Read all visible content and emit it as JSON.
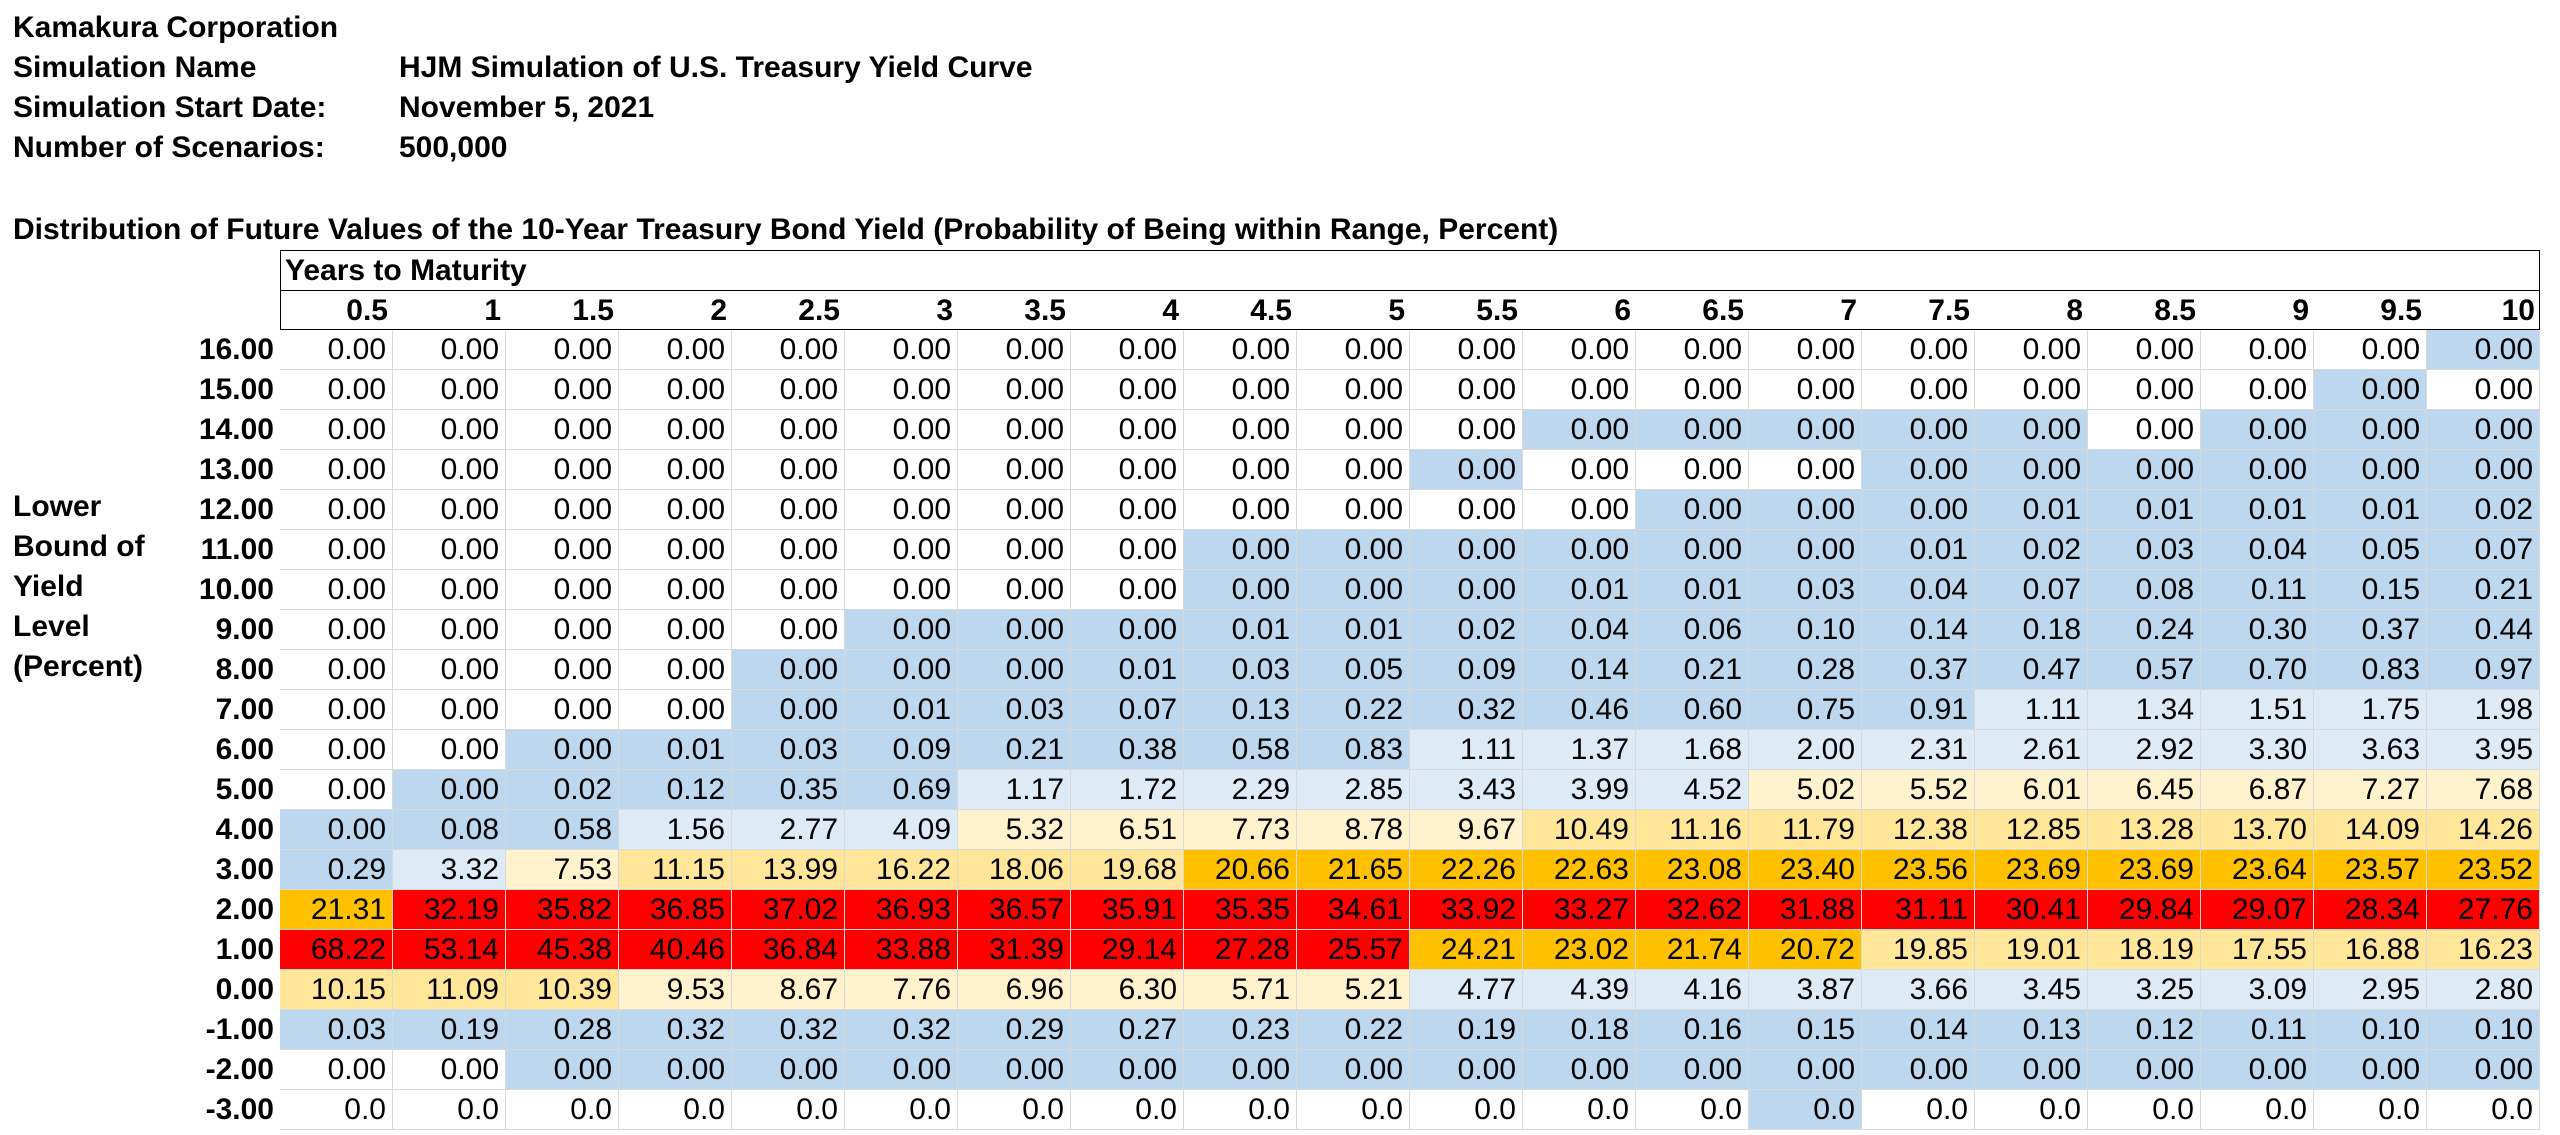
{
  "header": {
    "company": "Kamakura Corporation",
    "simulation_name_label": "Simulation Name",
    "simulation_name": "HJM Simulation of U.S. Treasury Yield Curve",
    "start_date_label": "Simulation Start Date:",
    "start_date": "November 5, 2021",
    "scenarios_label": "Number of Scenarios:",
    "scenarios": "500,000"
  },
  "table_title": "Distribution of Future Values of the 10-Year Treasury Bond Yield (Probability of Being within Range, Percent)",
  "years_to_maturity_label": "Years to Maturity",
  "row_axis_label": [
    "Lower",
    "Bound of",
    "Yield",
    "Level",
    "(Percent)"
  ],
  "colors": {
    "white": "#ffffff",
    "blue": "#bdd7ee",
    "lightblue": "#ddebf7",
    "cream": "#fff2cc",
    "yellow": "#ffe699",
    "orange": "#ffc000",
    "red": "#ff0000"
  },
  "chart_data": {
    "type": "table",
    "columns": [
      "0.5",
      "1",
      "1.5",
      "2",
      "2.5",
      "3",
      "3.5",
      "4",
      "4.5",
      "5",
      "5.5",
      "6",
      "6.5",
      "7",
      "7.5",
      "8",
      "8.5",
      "9",
      "9.5",
      "10"
    ],
    "rows": [
      {
        "label": "16.00",
        "values": [
          "0.00",
          "0.00",
          "0.00",
          "0.00",
          "0.00",
          "0.00",
          "0.00",
          "0.00",
          "0.00",
          "0.00",
          "0.00",
          "0.00",
          "0.00",
          "0.00",
          "0.00",
          "0.00",
          "0.00",
          "0.00",
          "0.00",
          "0.00"
        ],
        "shade": [
          "w",
          "w",
          "w",
          "w",
          "w",
          "w",
          "w",
          "w",
          "w",
          "w",
          "w",
          "w",
          "w",
          "w",
          "w",
          "w",
          "w",
          "w",
          "w",
          "b"
        ]
      },
      {
        "label": "15.00",
        "values": [
          "0.00",
          "0.00",
          "0.00",
          "0.00",
          "0.00",
          "0.00",
          "0.00",
          "0.00",
          "0.00",
          "0.00",
          "0.00",
          "0.00",
          "0.00",
          "0.00",
          "0.00",
          "0.00",
          "0.00",
          "0.00",
          "0.00",
          "0.00"
        ],
        "shade": [
          "w",
          "w",
          "w",
          "w",
          "w",
          "w",
          "w",
          "w",
          "w",
          "w",
          "w",
          "w",
          "w",
          "w",
          "w",
          "w",
          "w",
          "w",
          "b",
          "w"
        ]
      },
      {
        "label": "14.00",
        "values": [
          "0.00",
          "0.00",
          "0.00",
          "0.00",
          "0.00",
          "0.00",
          "0.00",
          "0.00",
          "0.00",
          "0.00",
          "0.00",
          "0.00",
          "0.00",
          "0.00",
          "0.00",
          "0.00",
          "0.00",
          "0.00",
          "0.00",
          "0.00"
        ],
        "shade": [
          "w",
          "w",
          "w",
          "w",
          "w",
          "w",
          "w",
          "w",
          "w",
          "w",
          "w",
          "b",
          "b",
          "b",
          "b",
          "b",
          "w",
          "b",
          "b",
          "b"
        ]
      },
      {
        "label": "13.00",
        "values": [
          "0.00",
          "0.00",
          "0.00",
          "0.00",
          "0.00",
          "0.00",
          "0.00",
          "0.00",
          "0.00",
          "0.00",
          "0.00",
          "0.00",
          "0.00",
          "0.00",
          "0.00",
          "0.00",
          "0.00",
          "0.00",
          "0.00",
          "0.00"
        ],
        "shade": [
          "w",
          "w",
          "w",
          "w",
          "w",
          "w",
          "w",
          "w",
          "w",
          "w",
          "b",
          "w",
          "w",
          "w",
          "b",
          "b",
          "b",
          "b",
          "b",
          "b"
        ]
      },
      {
        "label": "12.00",
        "values": [
          "0.00",
          "0.00",
          "0.00",
          "0.00",
          "0.00",
          "0.00",
          "0.00",
          "0.00",
          "0.00",
          "0.00",
          "0.00",
          "0.00",
          "0.00",
          "0.00",
          "0.00",
          "0.01",
          "0.01",
          "0.01",
          "0.01",
          "0.02"
        ],
        "shade": [
          "w",
          "w",
          "w",
          "w",
          "w",
          "w",
          "w",
          "w",
          "w",
          "w",
          "w",
          "w",
          "b",
          "b",
          "b",
          "b",
          "b",
          "b",
          "b",
          "b"
        ]
      },
      {
        "label": "11.00",
        "values": [
          "0.00",
          "0.00",
          "0.00",
          "0.00",
          "0.00",
          "0.00",
          "0.00",
          "0.00",
          "0.00",
          "0.00",
          "0.00",
          "0.00",
          "0.00",
          "0.00",
          "0.01",
          "0.02",
          "0.03",
          "0.04",
          "0.05",
          "0.07"
        ],
        "shade": [
          "w",
          "w",
          "w",
          "w",
          "w",
          "w",
          "w",
          "w",
          "b",
          "b",
          "b",
          "b",
          "b",
          "b",
          "b",
          "b",
          "b",
          "b",
          "b",
          "b"
        ]
      },
      {
        "label": "10.00",
        "values": [
          "0.00",
          "0.00",
          "0.00",
          "0.00",
          "0.00",
          "0.00",
          "0.00",
          "0.00",
          "0.00",
          "0.00",
          "0.00",
          "0.01",
          "0.01",
          "0.03",
          "0.04",
          "0.07",
          "0.08",
          "0.11",
          "0.15",
          "0.21"
        ],
        "shade": [
          "w",
          "w",
          "w",
          "w",
          "w",
          "w",
          "w",
          "w",
          "b",
          "b",
          "b",
          "b",
          "b",
          "b",
          "b",
          "b",
          "b",
          "b",
          "b",
          "b"
        ]
      },
      {
        "label": "9.00",
        "values": [
          "0.00",
          "0.00",
          "0.00",
          "0.00",
          "0.00",
          "0.00",
          "0.00",
          "0.00",
          "0.01",
          "0.01",
          "0.02",
          "0.04",
          "0.06",
          "0.10",
          "0.14",
          "0.18",
          "0.24",
          "0.30",
          "0.37",
          "0.44"
        ],
        "shade": [
          "w",
          "w",
          "w",
          "w",
          "w",
          "b",
          "b",
          "b",
          "b",
          "b",
          "b",
          "b",
          "b",
          "b",
          "b",
          "b",
          "b",
          "b",
          "b",
          "b"
        ]
      },
      {
        "label": "8.00",
        "values": [
          "0.00",
          "0.00",
          "0.00",
          "0.00",
          "0.00",
          "0.00",
          "0.00",
          "0.01",
          "0.03",
          "0.05",
          "0.09",
          "0.14",
          "0.21",
          "0.28",
          "0.37",
          "0.47",
          "0.57",
          "0.70",
          "0.83",
          "0.97"
        ],
        "shade": [
          "w",
          "w",
          "w",
          "w",
          "b",
          "b",
          "b",
          "b",
          "b",
          "b",
          "b",
          "b",
          "b",
          "b",
          "b",
          "b",
          "b",
          "b",
          "b",
          "b"
        ]
      },
      {
        "label": "7.00",
        "values": [
          "0.00",
          "0.00",
          "0.00",
          "0.00",
          "0.00",
          "0.01",
          "0.03",
          "0.07",
          "0.13",
          "0.22",
          "0.32",
          "0.46",
          "0.60",
          "0.75",
          "0.91",
          "1.11",
          "1.34",
          "1.51",
          "1.75",
          "1.98"
        ],
        "shade": [
          "w",
          "w",
          "w",
          "w",
          "b",
          "b",
          "b",
          "b",
          "b",
          "b",
          "b",
          "b",
          "b",
          "b",
          "b",
          "l",
          "l",
          "l",
          "l",
          "l"
        ]
      },
      {
        "label": "6.00",
        "values": [
          "0.00",
          "0.00",
          "0.00",
          "0.01",
          "0.03",
          "0.09",
          "0.21",
          "0.38",
          "0.58",
          "0.83",
          "1.11",
          "1.37",
          "1.68",
          "2.00",
          "2.31",
          "2.61",
          "2.92",
          "3.30",
          "3.63",
          "3.95"
        ],
        "shade": [
          "w",
          "w",
          "b",
          "b",
          "b",
          "b",
          "b",
          "b",
          "b",
          "b",
          "l",
          "l",
          "l",
          "l",
          "l",
          "l",
          "l",
          "l",
          "l",
          "l"
        ]
      },
      {
        "label": "5.00",
        "values": [
          "0.00",
          "0.00",
          "0.02",
          "0.12",
          "0.35",
          "0.69",
          "1.17",
          "1.72",
          "2.29",
          "2.85",
          "3.43",
          "3.99",
          "4.52",
          "5.02",
          "5.52",
          "6.01",
          "6.45",
          "6.87",
          "7.27",
          "7.68"
        ],
        "shade": [
          "w",
          "b",
          "b",
          "b",
          "b",
          "b",
          "l",
          "l",
          "l",
          "l",
          "l",
          "l",
          "l",
          "c",
          "c",
          "c",
          "c",
          "c",
          "c",
          "c"
        ]
      },
      {
        "label": "4.00",
        "values": [
          "0.00",
          "0.08",
          "0.58",
          "1.56",
          "2.77",
          "4.09",
          "5.32",
          "6.51",
          "7.73",
          "8.78",
          "9.67",
          "10.49",
          "11.16",
          "11.79",
          "12.38",
          "12.85",
          "13.28",
          "13.70",
          "14.09",
          "14.26"
        ],
        "shade": [
          "b",
          "b",
          "b",
          "l",
          "l",
          "l",
          "c",
          "c",
          "c",
          "c",
          "c",
          "y",
          "y",
          "y",
          "y",
          "y",
          "y",
          "y",
          "y",
          "y"
        ]
      },
      {
        "label": "3.00",
        "values": [
          "0.29",
          "3.32",
          "7.53",
          "11.15",
          "13.99",
          "16.22",
          "18.06",
          "19.68",
          "20.66",
          "21.65",
          "22.26",
          "22.63",
          "23.08",
          "23.40",
          "23.56",
          "23.69",
          "23.69",
          "23.64",
          "23.57",
          "23.52"
        ],
        "shade": [
          "b",
          "l",
          "c",
          "y",
          "y",
          "y",
          "y",
          "y",
          "o",
          "o",
          "o",
          "o",
          "o",
          "o",
          "o",
          "o",
          "o",
          "o",
          "o",
          "o"
        ]
      },
      {
        "label": "2.00",
        "values": [
          "21.31",
          "32.19",
          "35.82",
          "36.85",
          "37.02",
          "36.93",
          "36.57",
          "35.91",
          "35.35",
          "34.61",
          "33.92",
          "33.27",
          "32.62",
          "31.88",
          "31.11",
          "30.41",
          "29.84",
          "29.07",
          "28.34",
          "27.76"
        ],
        "shade": [
          "o",
          "r",
          "r",
          "r",
          "r",
          "r",
          "r",
          "r",
          "r",
          "r",
          "r",
          "r",
          "r",
          "r",
          "r",
          "r",
          "r",
          "r",
          "r",
          "r"
        ]
      },
      {
        "label": "1.00",
        "values": [
          "68.22",
          "53.14",
          "45.38",
          "40.46",
          "36.84",
          "33.88",
          "31.39",
          "29.14",
          "27.28",
          "25.57",
          "24.21",
          "23.02",
          "21.74",
          "20.72",
          "19.85",
          "19.01",
          "18.19",
          "17.55",
          "16.88",
          "16.23"
        ],
        "shade": [
          "r",
          "r",
          "r",
          "r",
          "r",
          "r",
          "r",
          "r",
          "r",
          "r",
          "o",
          "o",
          "o",
          "o",
          "y",
          "y",
          "y",
          "y",
          "y",
          "y"
        ]
      },
      {
        "label": "0.00",
        "values": [
          "10.15",
          "11.09",
          "10.39",
          "9.53",
          "8.67",
          "7.76",
          "6.96",
          "6.30",
          "5.71",
          "5.21",
          "4.77",
          "4.39",
          "4.16",
          "3.87",
          "3.66",
          "3.45",
          "3.25",
          "3.09",
          "2.95",
          "2.80"
        ],
        "shade": [
          "y",
          "y",
          "y",
          "c",
          "c",
          "c",
          "c",
          "c",
          "c",
          "c",
          "l",
          "l",
          "l",
          "l",
          "l",
          "l",
          "l",
          "l",
          "l",
          "l"
        ]
      },
      {
        "label": "-1.00",
        "values": [
          "0.03",
          "0.19",
          "0.28",
          "0.32",
          "0.32",
          "0.32",
          "0.29",
          "0.27",
          "0.23",
          "0.22",
          "0.19",
          "0.18",
          "0.16",
          "0.15",
          "0.14",
          "0.13",
          "0.12",
          "0.11",
          "0.10",
          "0.10"
        ],
        "shade": [
          "b",
          "b",
          "b",
          "b",
          "b",
          "b",
          "b",
          "b",
          "b",
          "b",
          "b",
          "b",
          "b",
          "b",
          "b",
          "b",
          "b",
          "b",
          "b",
          "b"
        ]
      },
      {
        "label": "-2.00",
        "values": [
          "0.00",
          "0.00",
          "0.00",
          "0.00",
          "0.00",
          "0.00",
          "0.00",
          "0.00",
          "0.00",
          "0.00",
          "0.00",
          "0.00",
          "0.00",
          "0.00",
          "0.00",
          "0.00",
          "0.00",
          "0.00",
          "0.00",
          "0.00"
        ],
        "shade": [
          "w",
          "w",
          "b",
          "b",
          "b",
          "b",
          "b",
          "b",
          "b",
          "b",
          "b",
          "b",
          "b",
          "b",
          "b",
          "b",
          "b",
          "b",
          "b",
          "b"
        ]
      },
      {
        "label": "-3.00",
        "values": [
          "0.0",
          "0.0",
          "0.0",
          "0.0",
          "0.0",
          "0.0",
          "0.0",
          "0.0",
          "0.0",
          "0.0",
          "0.0",
          "0.0",
          "0.0",
          "0.0",
          "0.0",
          "0.0",
          "0.0",
          "0.0",
          "0.0",
          "0.0"
        ],
        "shade": [
          "w",
          "w",
          "w",
          "w",
          "w",
          "w",
          "w",
          "w",
          "w",
          "w",
          "w",
          "w",
          "w",
          "b",
          "w",
          "w",
          "w",
          "w",
          "w",
          "w"
        ]
      }
    ]
  }
}
